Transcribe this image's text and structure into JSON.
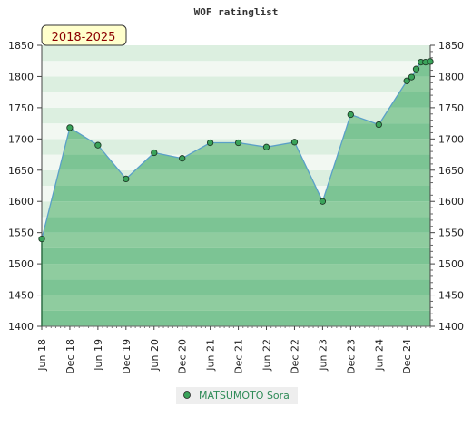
{
  "chart_data": {
    "type": "line",
    "title": "WOF ratinglist",
    "period": "2018-2025",
    "ylim": [
      1400,
      1850
    ],
    "yticks": [
      1400,
      1450,
      1500,
      1550,
      1600,
      1650,
      1700,
      1750,
      1800,
      1850
    ],
    "xticks": [
      "Jun 18",
      "Dec 18",
      "Jun 19",
      "Dec 19",
      "Jun 20",
      "Dec 20",
      "Jun 21",
      "Dec 21",
      "Jun 22",
      "Dec 22",
      "Jun 23",
      "Dec 23",
      "Jun 24",
      "Dec 24"
    ],
    "grid": true,
    "y_axes": "left and right",
    "legend_position": "bottom-center",
    "series": [
      {
        "name": "MATSUMOTO Sora",
        "color": "#5aa0c8",
        "marker_color": "#3aa35a",
        "points": [
          {
            "x": "2018-06",
            "y": 1540
          },
          {
            "x": "2018-12",
            "y": 1718
          },
          {
            "x": "2019-06",
            "y": 1690
          },
          {
            "x": "2019-12",
            "y": 1636
          },
          {
            "x": "2020-06",
            "y": 1678
          },
          {
            "x": "2020-12",
            "y": 1669
          },
          {
            "x": "2021-06",
            "y": 1694
          },
          {
            "x": "2021-12",
            "y": 1694
          },
          {
            "x": "2022-06",
            "y": 1687
          },
          {
            "x": "2022-12",
            "y": 1695
          },
          {
            "x": "2023-06",
            "y": 1600
          },
          {
            "x": "2023-12",
            "y": 1739
          },
          {
            "x": "2024-06",
            "y": 1723
          },
          {
            "x": "2024-12",
            "y": 1793
          },
          {
            "x": "2025-01",
            "y": 1799
          },
          {
            "x": "2025-02",
            "y": 1812
          },
          {
            "x": "2025-03",
            "y": 1823
          },
          {
            "x": "2025-04",
            "y": 1823
          },
          {
            "x": "2025-05",
            "y": 1824
          }
        ]
      }
    ]
  }
}
